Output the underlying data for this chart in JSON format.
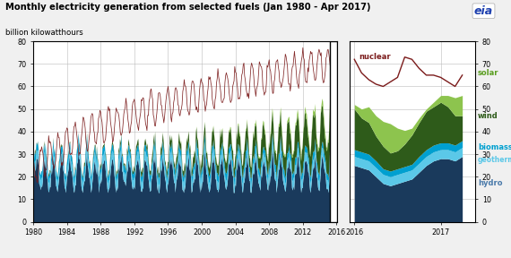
{
  "title": "Monthly electricity generation from selected fuels (Jan 1980 - Apr 2017)",
  "ylabel": "billion kilowatthours",
  "ylim": [
    0,
    80
  ],
  "nuclear_color": "#7B1B1B",
  "hydro_color": "#1A3A5C",
  "geothermal_color": "#5BC8E8",
  "biomass_color": "#00A0D0",
  "wind_color": "#2E5B1A",
  "solar_color": "#8DC44E",
  "bg_color": "#F0F0F0",
  "left_xticks": [
    1980,
    1984,
    1988,
    1992,
    1996,
    2000,
    2004,
    2008,
    2012,
    2016
  ],
  "right_xtick_labels": [
    "2016",
    "2017"
  ],
  "nuclear_right": [
    72,
    66,
    63,
    61,
    60,
    62,
    64,
    73,
    72,
    68,
    65,
    65,
    64,
    62,
    60,
    65
  ],
  "hydro_right": [
    25,
    24,
    23,
    20,
    17,
    16,
    17,
    18,
    19,
    22,
    25,
    27,
    28,
    28,
    27,
    29
  ],
  "geothermal_right": [
    4,
    4,
    4,
    4,
    4,
    4,
    4,
    4,
    4,
    4,
    4,
    4,
    4,
    4,
    4,
    4
  ],
  "biomass_right": [
    3,
    3,
    3,
    3,
    2.5,
    2.5,
    2.5,
    2.5,
    2.5,
    3,
    3,
    3,
    3,
    3,
    3,
    3
  ],
  "wind_right": [
    18,
    15,
    14,
    11,
    10,
    8,
    8,
    10,
    13,
    15,
    17,
    17,
    18,
    16,
    13,
    11
  ],
  "solar_right": [
    2,
    4,
    7,
    9,
    11,
    13,
    10,
    6,
    3,
    2,
    1,
    2,
    3,
    5,
    8,
    9
  ]
}
